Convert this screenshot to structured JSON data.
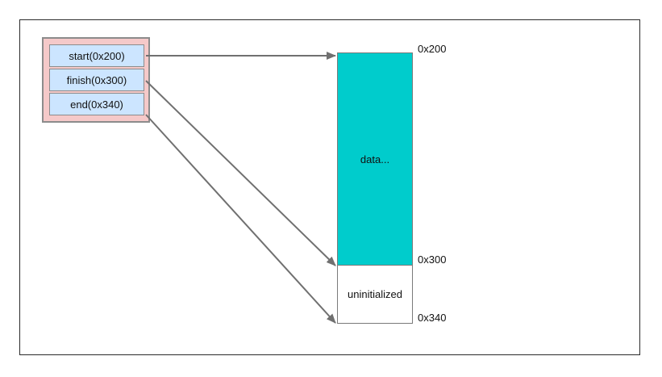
{
  "struct": {
    "fields": [
      {
        "label": "start(0x200)"
      },
      {
        "label": "finish(0x300)"
      },
      {
        "label": "end(0x340)"
      }
    ]
  },
  "memory": {
    "data_label": "data...",
    "uninit_label": "uninitialized",
    "addresses": [
      "0x200",
      "0x300",
      "0x340"
    ]
  },
  "colors": {
    "struct_bg": "#f5c9c9",
    "field_bg": "#cce5ff",
    "data_bg": "#00cccc",
    "arrow": "#707070"
  }
}
